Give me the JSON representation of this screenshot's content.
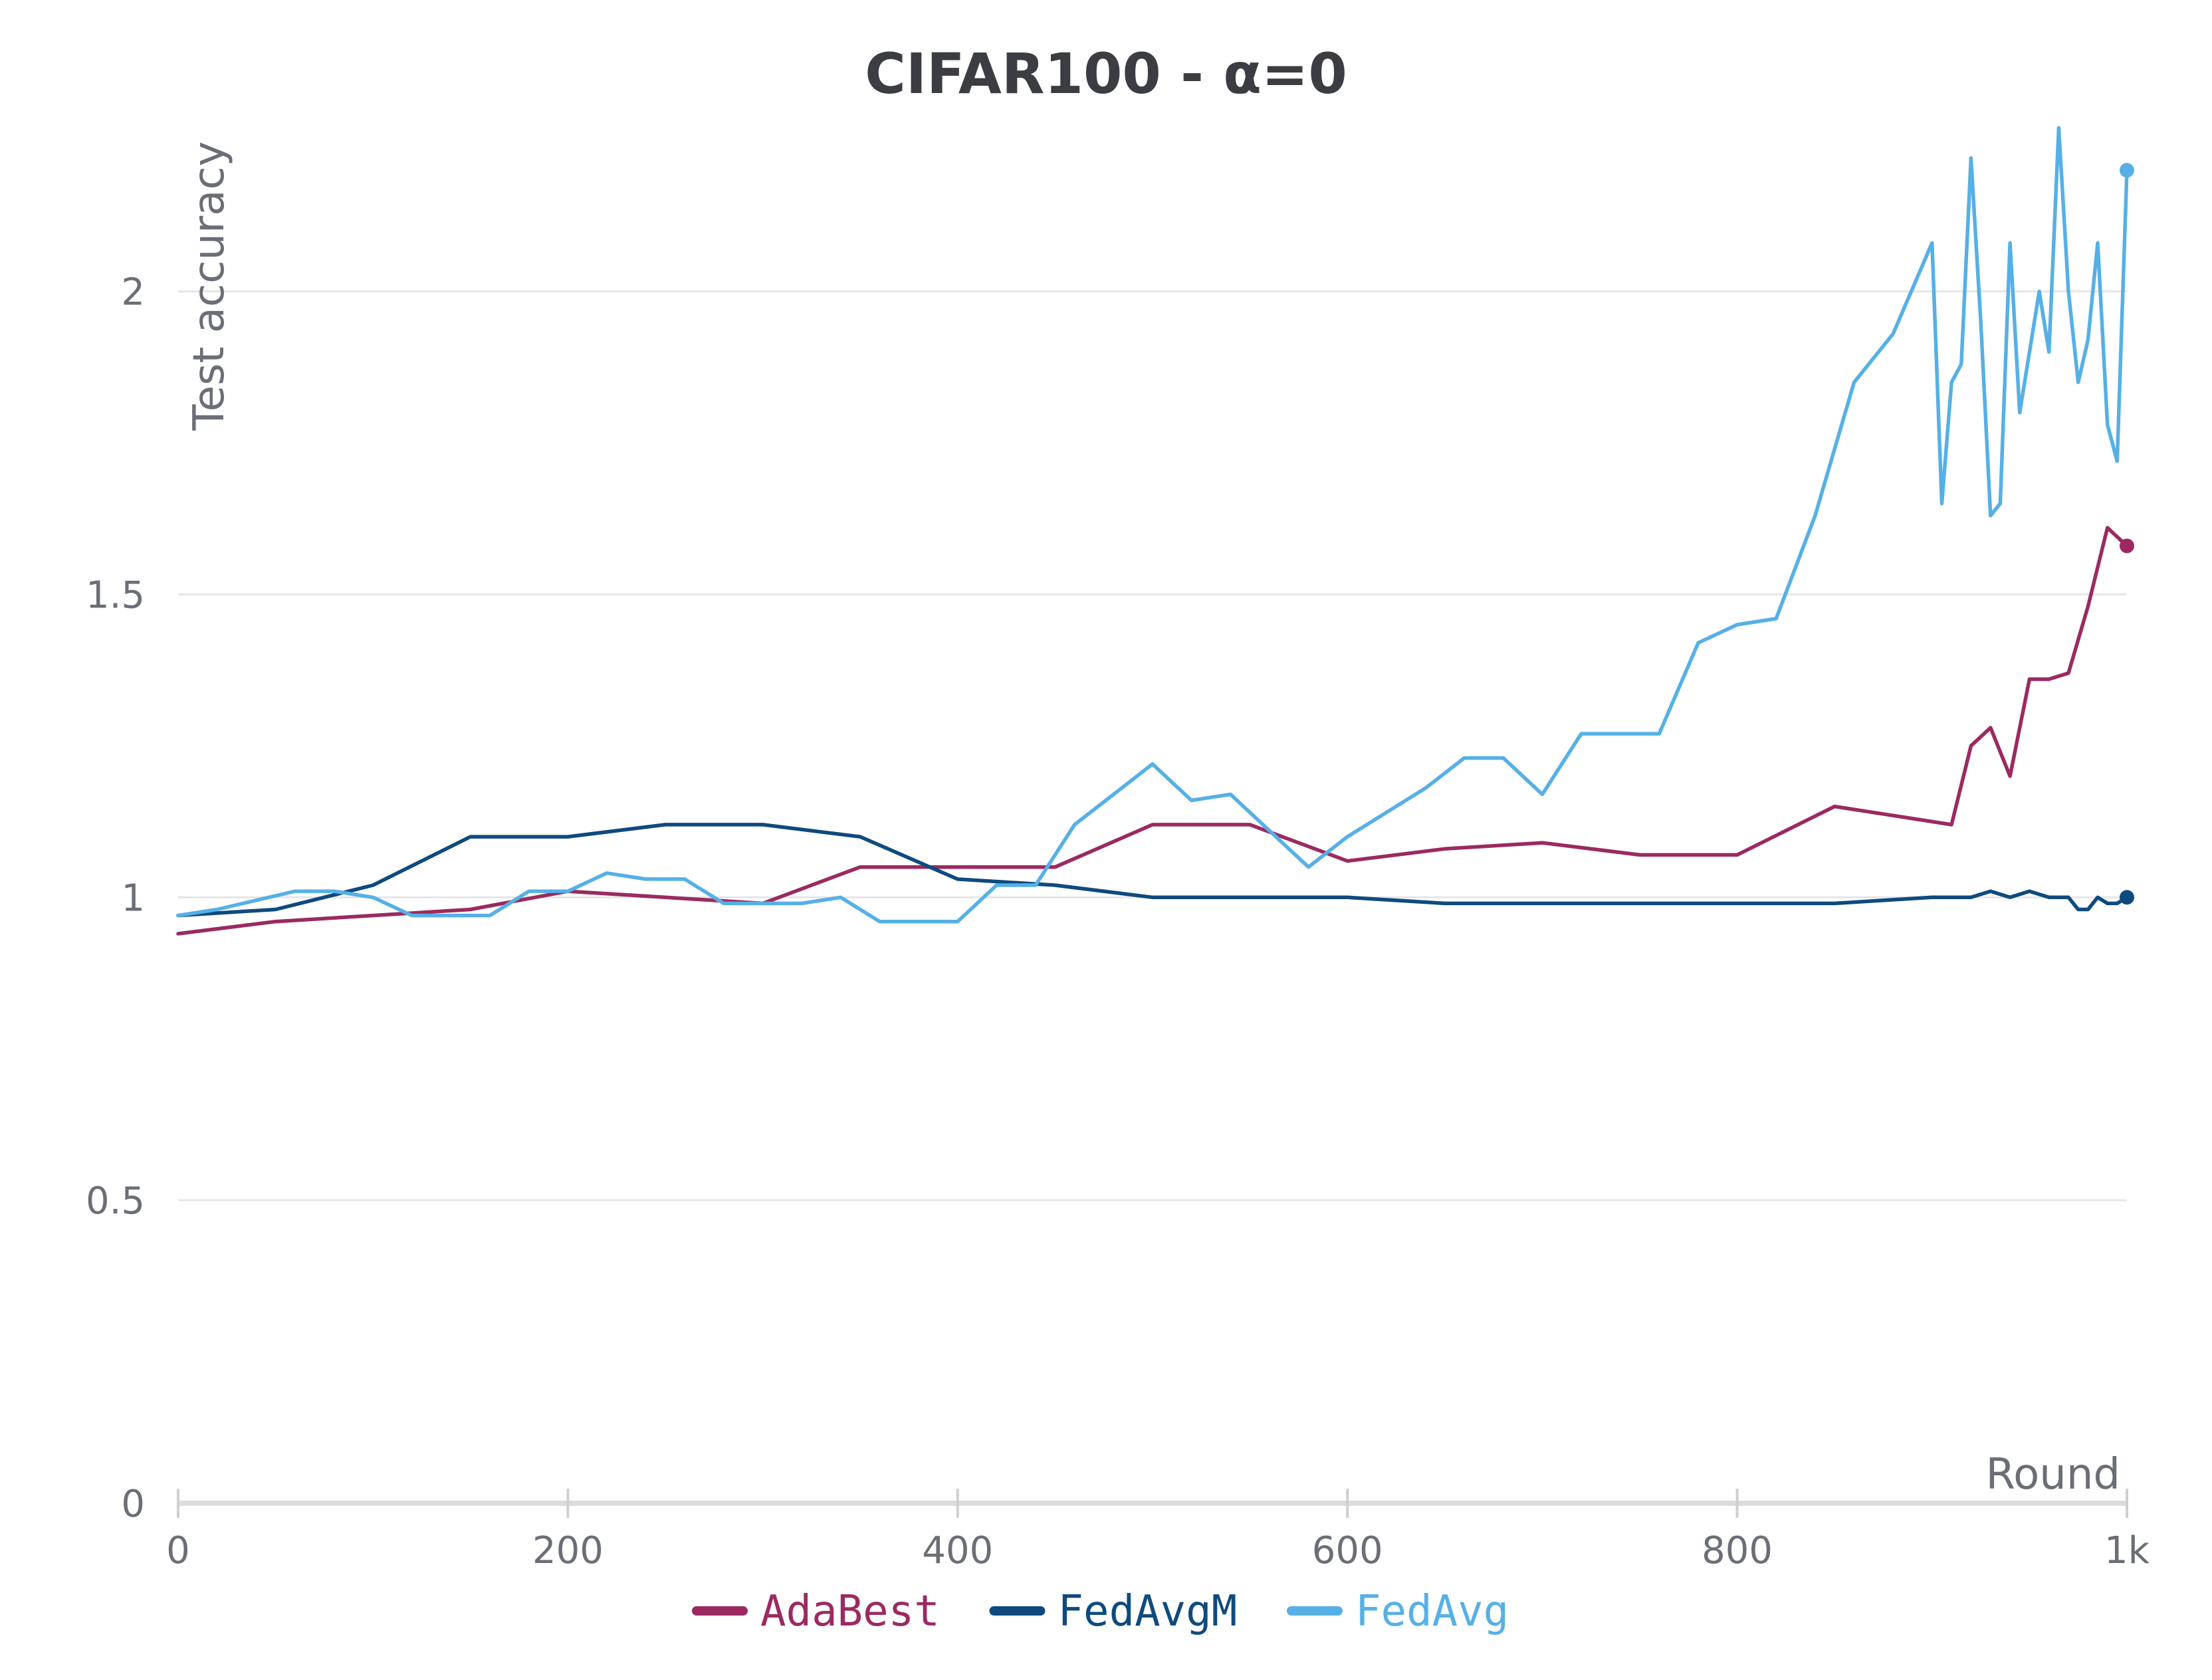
{
  "chart_data": {
    "type": "line",
    "title": "CIFAR100 - α=0",
    "xlabel": "Round",
    "ylabel": "Test accuracy",
    "xlim": [
      0,
      1000
    ],
    "ylim": [
      0,
      2.3
    ],
    "x_ticks": [
      {
        "value": 0,
        "label": "0"
      },
      {
        "value": 200,
        "label": "200"
      },
      {
        "value": 400,
        "label": "400"
      },
      {
        "value": 600,
        "label": "600"
      },
      {
        "value": 800,
        "label": "800"
      },
      {
        "value": 1000,
        "label": "1k"
      }
    ],
    "y_ticks": [
      {
        "value": 0,
        "label": "0"
      },
      {
        "value": 0.5,
        "label": "0.5"
      },
      {
        "value": 1,
        "label": "1"
      },
      {
        "value": 1.5,
        "label": "1.5"
      },
      {
        "value": 2,
        "label": "2"
      }
    ],
    "grid": true,
    "legend_position": "bottom",
    "series": [
      {
        "name": "AdaBest",
        "color": "#9b2a60",
        "x": [
          0,
          50,
          100,
          150,
          200,
          250,
          300,
          350,
          400,
          450,
          500,
          550,
          600,
          650,
          700,
          750,
          800,
          850,
          910,
          920,
          930,
          940,
          950,
          960,
          970,
          980,
          990,
          1000
        ],
        "y": [
          0.94,
          0.96,
          0.97,
          0.98,
          1.01,
          1.0,
          0.99,
          1.05,
          1.05,
          1.05,
          1.12,
          1.12,
          1.06,
          1.08,
          1.09,
          1.07,
          1.07,
          1.15,
          1.12,
          1.25,
          1.28,
          1.2,
          1.36,
          1.36,
          1.37,
          1.48,
          1.61,
          1.58
        ]
      },
      {
        "name": "FedAvgM",
        "color": "#0e4a7e",
        "x": [
          0,
          50,
          100,
          150,
          200,
          250,
          300,
          350,
          400,
          450,
          500,
          550,
          600,
          650,
          700,
          750,
          800,
          850,
          900,
          920,
          930,
          940,
          950,
          960,
          970,
          975,
          980,
          985,
          990,
          995,
          1000
        ],
        "y": [
          0.97,
          0.98,
          1.02,
          1.1,
          1.1,
          1.12,
          1.12,
          1.1,
          1.03,
          1.02,
          1.0,
          1.0,
          1.0,
          0.99,
          0.99,
          0.99,
          0.99,
          0.99,
          1.0,
          1.0,
          1.01,
          1.0,
          1.01,
          1.0,
          1.0,
          0.98,
          0.98,
          1.0,
          0.99,
          0.99,
          1.0
        ]
      },
      {
        "name": "FedAvg",
        "color": "#56b0e6",
        "x": [
          0,
          20,
          60,
          80,
          100,
          120,
          160,
          180,
          200,
          220,
          240,
          260,
          280,
          300,
          320,
          340,
          360,
          380,
          400,
          420,
          440,
          460,
          480,
          500,
          520,
          540,
          560,
          580,
          600,
          620,
          640,
          660,
          680,
          700,
          720,
          740,
          760,
          780,
          800,
          820,
          840,
          860,
          880,
          900,
          905,
          910,
          915,
          920,
          925,
          930,
          935,
          940,
          945,
          950,
          955,
          960,
          965,
          970,
          975,
          980,
          985,
          990,
          995,
          1000
        ],
        "y": [
          0.97,
          0.98,
          1.01,
          1.01,
          1.0,
          0.97,
          0.97,
          1.01,
          1.01,
          1.04,
          1.03,
          1.03,
          0.99,
          0.99,
          0.99,
          1.0,
          0.96,
          0.96,
          0.96,
          1.02,
          1.02,
          1.12,
          1.17,
          1.22,
          1.16,
          1.17,
          1.11,
          1.05,
          1.1,
          1.14,
          1.18,
          1.23,
          1.23,
          1.17,
          1.27,
          1.27,
          1.27,
          1.42,
          1.45,
          1.46,
          1.63,
          1.85,
          1.93,
          2.08,
          1.65,
          1.85,
          1.88,
          2.22,
          1.95,
          1.63,
          1.65,
          2.08,
          1.8,
          1.9,
          2.0,
          1.9,
          2.27,
          2.0,
          1.85,
          1.92,
          2.08,
          1.78,
          1.72,
          2.2
        ]
      }
    ]
  }
}
